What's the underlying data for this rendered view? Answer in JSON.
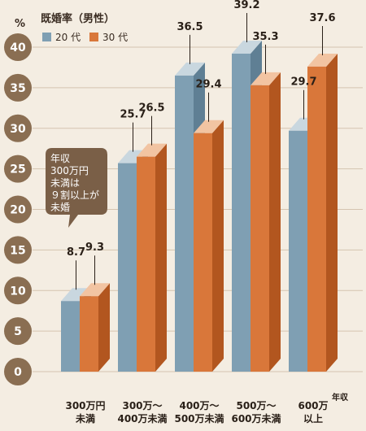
{
  "chart_data": {
    "type": "bar",
    "title": "既婚率（男性）",
    "unit_label": "%",
    "xlabel": "年収",
    "ylim": [
      0,
      40
    ],
    "y_ticks": [
      0,
      5,
      10,
      15,
      20,
      25,
      30,
      35,
      40
    ],
    "categories": [
      [
        "300万円",
        "未満"
      ],
      [
        "300万～",
        "400万未満"
      ],
      [
        "400万～",
        "500万未満"
      ],
      [
        "500万～",
        "600万未満"
      ],
      [
        "600万",
        "以上"
      ]
    ],
    "series": [
      {
        "name": "20 代",
        "values": [
          8.7,
          25.7,
          36.5,
          39.2,
          29.7
        ]
      },
      {
        "name": "30 代",
        "values": [
          9.3,
          26.5,
          29.4,
          35.3,
          37.6
        ]
      }
    ],
    "annotation": [
      "年収",
      "300万円",
      "未満は",
      "９割以上が",
      "未婚"
    ],
    "grid": true
  },
  "colors": {
    "background": "#f4ede2",
    "tick_circle": "#8a6e52",
    "grid": "#d5c4b0",
    "series20_front": "#7f9fb3",
    "series20_side": "#5f7f94",
    "series20_top": "#c9d7df",
    "series30_front": "#d9773a",
    "series30_side": "#b2561f",
    "series30_top": "#f2c4a2",
    "callout": "#7a5f47"
  }
}
